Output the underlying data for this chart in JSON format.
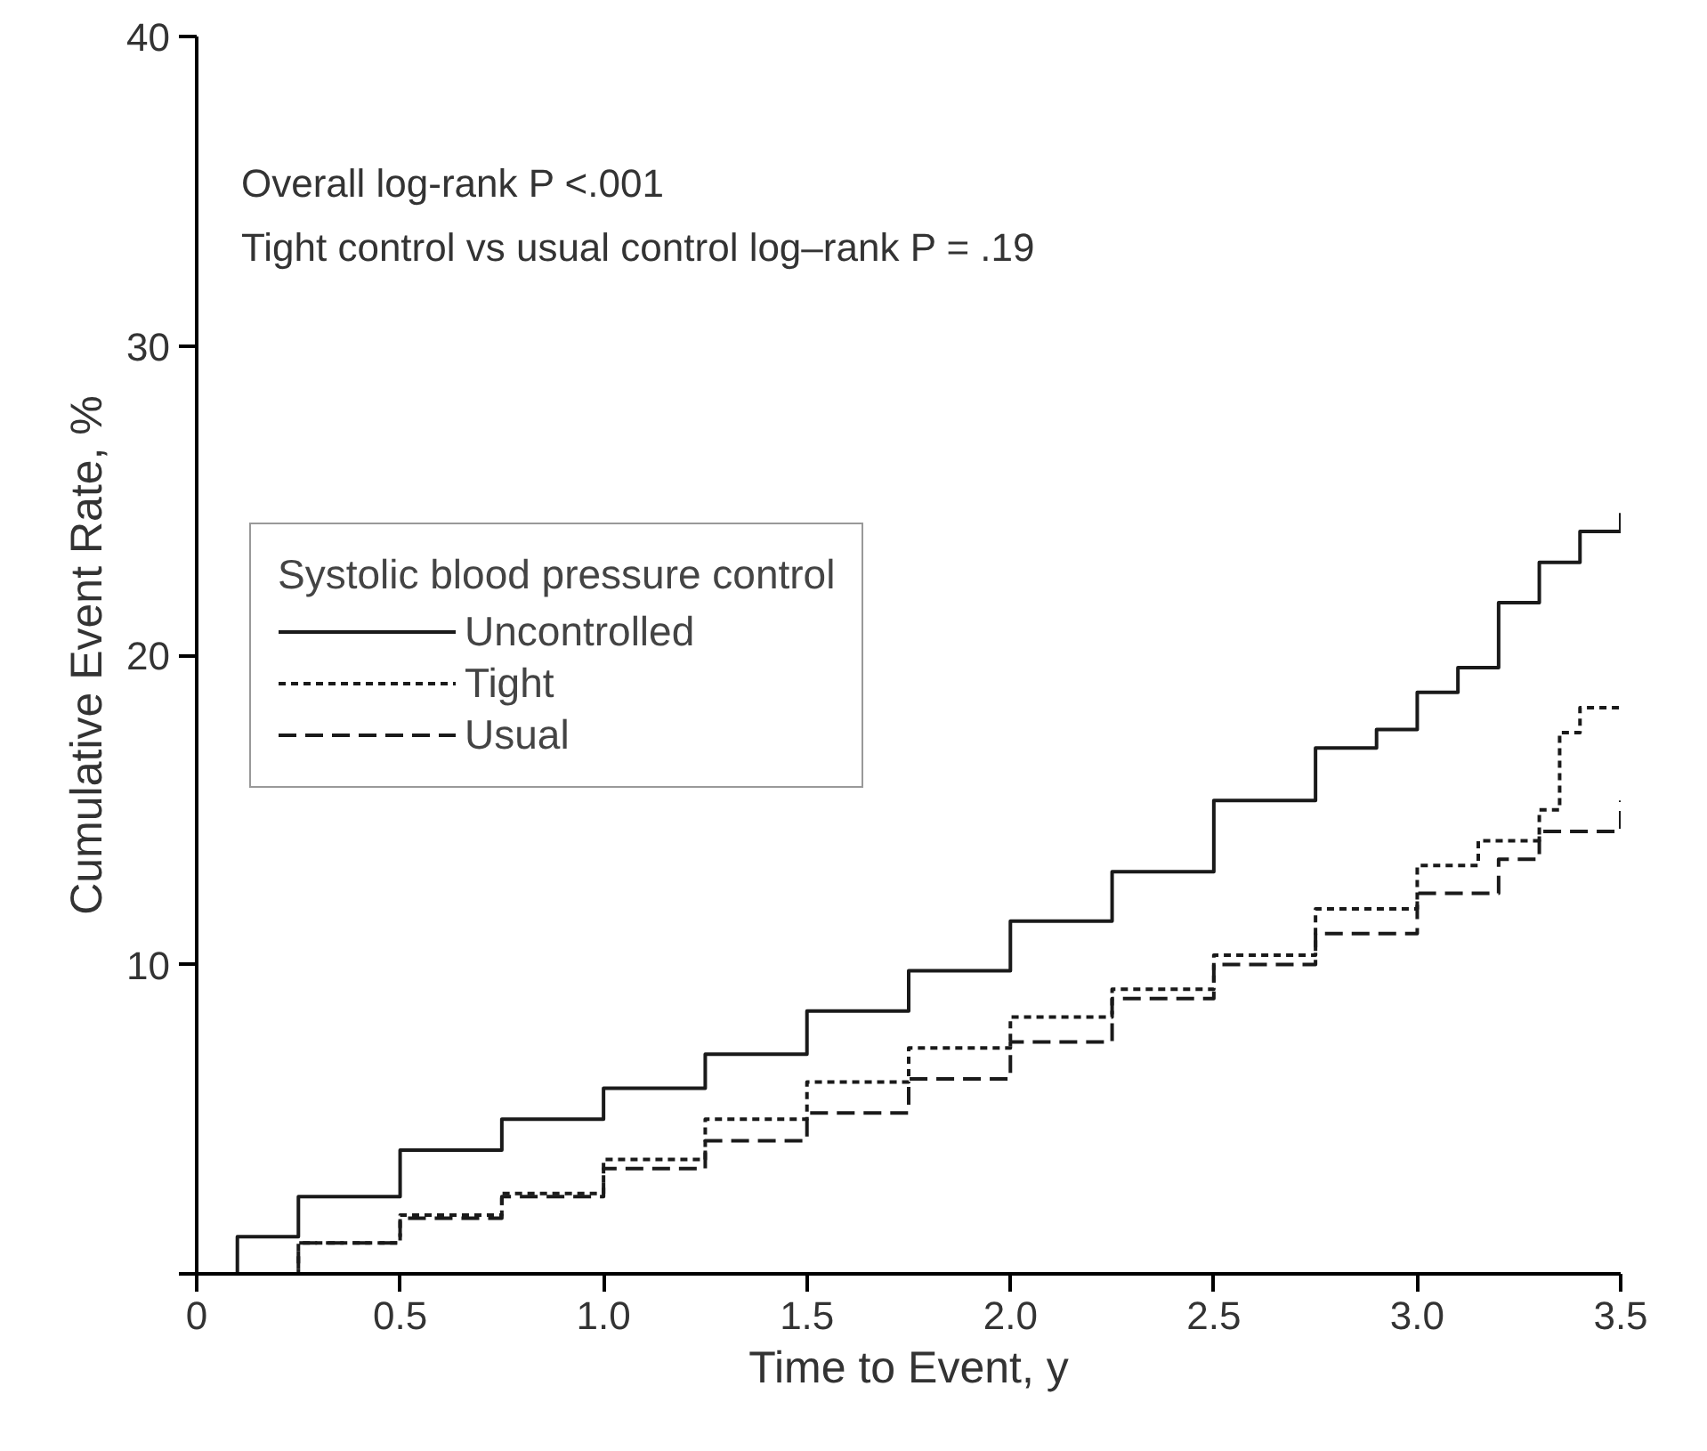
{
  "chart_data": {
    "type": "step",
    "xlabel": "Time to Event, y",
    "ylabel": "Cumulative Event Rate, %",
    "legend_title": "Systolic blood pressure control",
    "annotations": [
      "Overall log-rank P <.001",
      "Tight control vs usual control log–rank P = .19"
    ],
    "xlim": [
      0,
      3.5
    ],
    "ylim": [
      0,
      40
    ],
    "xticks": [
      0,
      0.5,
      {
        "value": 1,
        "label": "1.0"
      },
      1.5,
      {
        "value": 2,
        "label": "2.0"
      },
      2.5,
      {
        "value": 3,
        "label": "3.0"
      },
      3.5
    ],
    "yticks": [
      {
        "value": 0,
        "label": null
      },
      10,
      20,
      30,
      40
    ],
    "grid": false,
    "legend": "left",
    "marker": "none",
    "series": [
      {
        "name": "Uncontrolled",
        "color": "#1a1a1a",
        "line_style": "solid",
        "x": [
          0,
          0.1,
          0.25,
          0.5,
          0.75,
          1.0,
          1.25,
          1.5,
          1.75,
          2.0,
          2.25,
          2.5,
          2.75,
          2.9,
          3.0,
          3.1,
          3.2,
          3.3,
          3.4,
          3.5
        ],
        "values": [
          0,
          1.2,
          2.5,
          4.0,
          5.0,
          6.0,
          7.1,
          8.5,
          9.8,
          11.4,
          13.0,
          15.3,
          17.0,
          17.6,
          18.8,
          19.6,
          21.7,
          23.0,
          24.0,
          24.6
        ]
      },
      {
        "name": "Tight",
        "color": "#1a1a1a",
        "line_style": "dotted",
        "x": [
          0,
          0.25,
          0.5,
          0.75,
          1.0,
          1.25,
          1.5,
          1.75,
          2.0,
          2.25,
          2.5,
          2.75,
          3.0,
          3.15,
          3.3,
          3.35,
          3.4,
          3.5
        ],
        "values": [
          0,
          1.0,
          1.9,
          2.6,
          3.7,
          5.0,
          6.2,
          7.3,
          8.3,
          9.2,
          10.3,
          11.8,
          13.2,
          14.0,
          15.0,
          17.5,
          18.3,
          18.3
        ]
      },
      {
        "name": "Usual",
        "color": "#1a1a1a",
        "line_style": "dashed",
        "x": [
          0,
          0.25,
          0.5,
          0.75,
          1.0,
          1.25,
          1.5,
          1.75,
          2.0,
          2.25,
          2.5,
          2.75,
          3.0,
          3.2,
          3.3,
          3.45,
          3.5
        ],
        "values": [
          0,
          1.0,
          1.8,
          2.5,
          3.4,
          4.3,
          5.2,
          6.3,
          7.5,
          8.9,
          10.0,
          11.0,
          12.3,
          13.4,
          14.3,
          14.3,
          15.3
        ]
      }
    ]
  }
}
